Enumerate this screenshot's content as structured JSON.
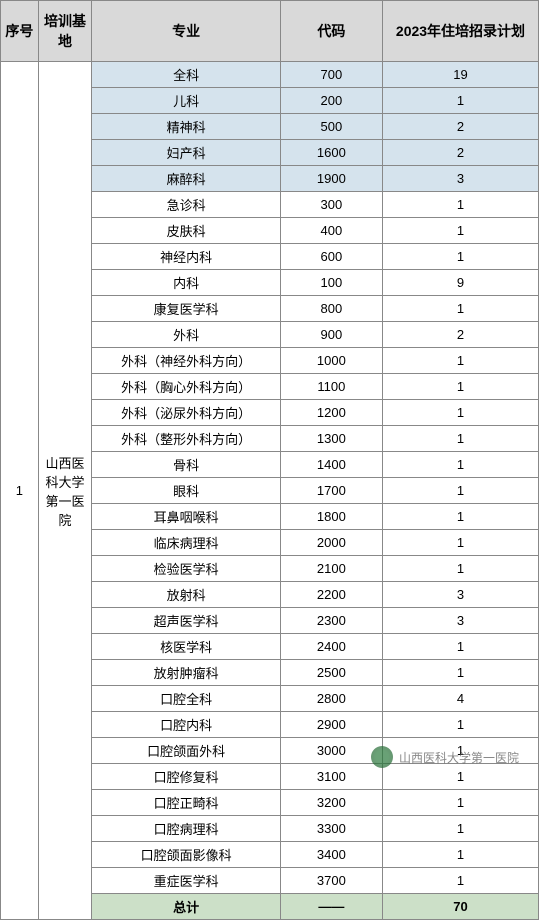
{
  "headers": {
    "seq": "序号",
    "base": "培训基地",
    "major": "专业",
    "code": "代码",
    "plan": "2023年住培招录计划"
  },
  "seq_value": "1",
  "base_value": "山西医科大学第一医院",
  "rows": [
    {
      "major": "全科",
      "code": "700",
      "plan": "19",
      "highlight": true
    },
    {
      "major": "儿科",
      "code": "200",
      "plan": "1",
      "highlight": true
    },
    {
      "major": "精神科",
      "code": "500",
      "plan": "2",
      "highlight": true
    },
    {
      "major": "妇产科",
      "code": "1600",
      "plan": "2",
      "highlight": true
    },
    {
      "major": "麻醉科",
      "code": "1900",
      "plan": "3",
      "highlight": true
    },
    {
      "major": "急诊科",
      "code": "300",
      "plan": "1",
      "highlight": false
    },
    {
      "major": "皮肤科",
      "code": "400",
      "plan": "1",
      "highlight": false
    },
    {
      "major": "神经内科",
      "code": "600",
      "plan": "1",
      "highlight": false
    },
    {
      "major": "内科",
      "code": "100",
      "plan": "9",
      "highlight": false
    },
    {
      "major": "康复医学科",
      "code": "800",
      "plan": "1",
      "highlight": false
    },
    {
      "major": "外科",
      "code": "900",
      "plan": "2",
      "highlight": false
    },
    {
      "major": "外科（神经外科方向）",
      "code": "1000",
      "plan": "1",
      "highlight": false
    },
    {
      "major": "外科（胸心外科方向）",
      "code": "1100",
      "plan": "1",
      "highlight": false
    },
    {
      "major": "外科（泌尿外科方向）",
      "code": "1200",
      "plan": "1",
      "highlight": false
    },
    {
      "major": "外科（整形外科方向）",
      "code": "1300",
      "plan": "1",
      "highlight": false
    },
    {
      "major": "骨科",
      "code": "1400",
      "plan": "1",
      "highlight": false
    },
    {
      "major": "眼科",
      "code": "1700",
      "plan": "1",
      "highlight": false
    },
    {
      "major": "耳鼻咽喉科",
      "code": "1800",
      "plan": "1",
      "highlight": false
    },
    {
      "major": "临床病理科",
      "code": "2000",
      "plan": "1",
      "highlight": false
    },
    {
      "major": "检验医学科",
      "code": "2100",
      "plan": "1",
      "highlight": false
    },
    {
      "major": "放射科",
      "code": "2200",
      "plan": "3",
      "highlight": false
    },
    {
      "major": "超声医学科",
      "code": "2300",
      "plan": "3",
      "highlight": false
    },
    {
      "major": "核医学科",
      "code": "2400",
      "plan": "1",
      "highlight": false
    },
    {
      "major": "放射肿瘤科",
      "code": "2500",
      "plan": "1",
      "highlight": false
    },
    {
      "major": "口腔全科",
      "code": "2800",
      "plan": "4",
      "highlight": false
    },
    {
      "major": "口腔内科",
      "code": "2900",
      "plan": "1",
      "highlight": false
    },
    {
      "major": "口腔颌面外科",
      "code": "3000",
      "plan": "1",
      "highlight": false
    },
    {
      "major": "口腔修复科",
      "code": "3100",
      "plan": "1",
      "highlight": false
    },
    {
      "major": "口腔正畸科",
      "code": "3200",
      "plan": "1",
      "highlight": false
    },
    {
      "major": "口腔病理科",
      "code": "3300",
      "plan": "1",
      "highlight": false
    },
    {
      "major": "口腔颌面影像科",
      "code": "3400",
      "plan": "1",
      "highlight": false
    },
    {
      "major": "重症医学科",
      "code": "3700",
      "plan": "1",
      "highlight": false
    }
  ],
  "total": {
    "major": "总计",
    "code": "——",
    "plan": "70"
  },
  "watermark": "山西医科大学第一医院",
  "colors": {
    "header_bg": "#d9d9d9",
    "highlight_bg": "#d5e3ed",
    "total_bg": "#cce0c8",
    "border": "#888888"
  }
}
